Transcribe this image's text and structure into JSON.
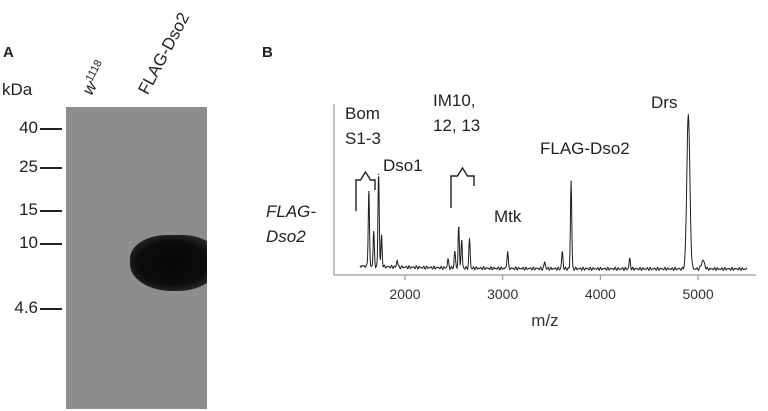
{
  "panel_a": {
    "letter": "A",
    "unit_label": "kDa",
    "lanes": [
      {
        "base": "w",
        "sup": "1118"
      },
      {
        "base": "FLAG-Dso2",
        "sup": ""
      }
    ],
    "markers": [
      {
        "label": "40",
        "kda": 40
      },
      {
        "label": "25",
        "kda": 25
      },
      {
        "label": "15",
        "kda": 15
      },
      {
        "label": "10",
        "kda": 10
      },
      {
        "label": "4.6",
        "kda": 4.6
      }
    ]
  },
  "panel_b": {
    "letter": "B",
    "ylabel_line1": "FLAG-",
    "ylabel_line2": "Dso2",
    "annotations": {
      "bom": [
        "Bom",
        "S1-3"
      ],
      "dso1": "Dso1",
      "im": [
        "IM10,",
        "12, 13"
      ],
      "mtk": "Mtk",
      "flag": "FLAG-Dso2",
      "drs": "Drs"
    }
  },
  "chart_data": {
    "type": "line",
    "xlabel": "m/z",
    "ylabel": "",
    "xlim": [
      1400,
      5600
    ],
    "xticks": [
      2000,
      3000,
      4000,
      5000
    ],
    "series": [
      {
        "peaks": [
          {
            "mz": 1630,
            "rel": 0.45
          },
          {
            "mz": 1680,
            "rel": 0.2
          },
          {
            "mz": 1730,
            "rel": 0.55
          },
          {
            "mz": 1760,
            "rel": 0.18
          },
          {
            "mz": 1920,
            "rel": 0.04
          },
          {
            "mz": 2440,
            "rel": 0.05
          },
          {
            "mz": 2510,
            "rel": 0.1
          },
          {
            "mz": 2550,
            "rel": 0.24
          },
          {
            "mz": 2580,
            "rel": 0.16
          },
          {
            "mz": 2660,
            "rel": 0.17
          },
          {
            "mz": 3050,
            "rel": 0.1
          },
          {
            "mz": 3430,
            "rel": 0.04
          },
          {
            "mz": 3610,
            "rel": 0.1
          },
          {
            "mz": 3700,
            "rel": 0.51
          },
          {
            "mz": 4300,
            "rel": 0.06
          },
          {
            "mz": 4900,
            "rel": 0.9
          },
          {
            "mz": 5050,
            "rel": 0.05
          }
        ]
      }
    ]
  }
}
